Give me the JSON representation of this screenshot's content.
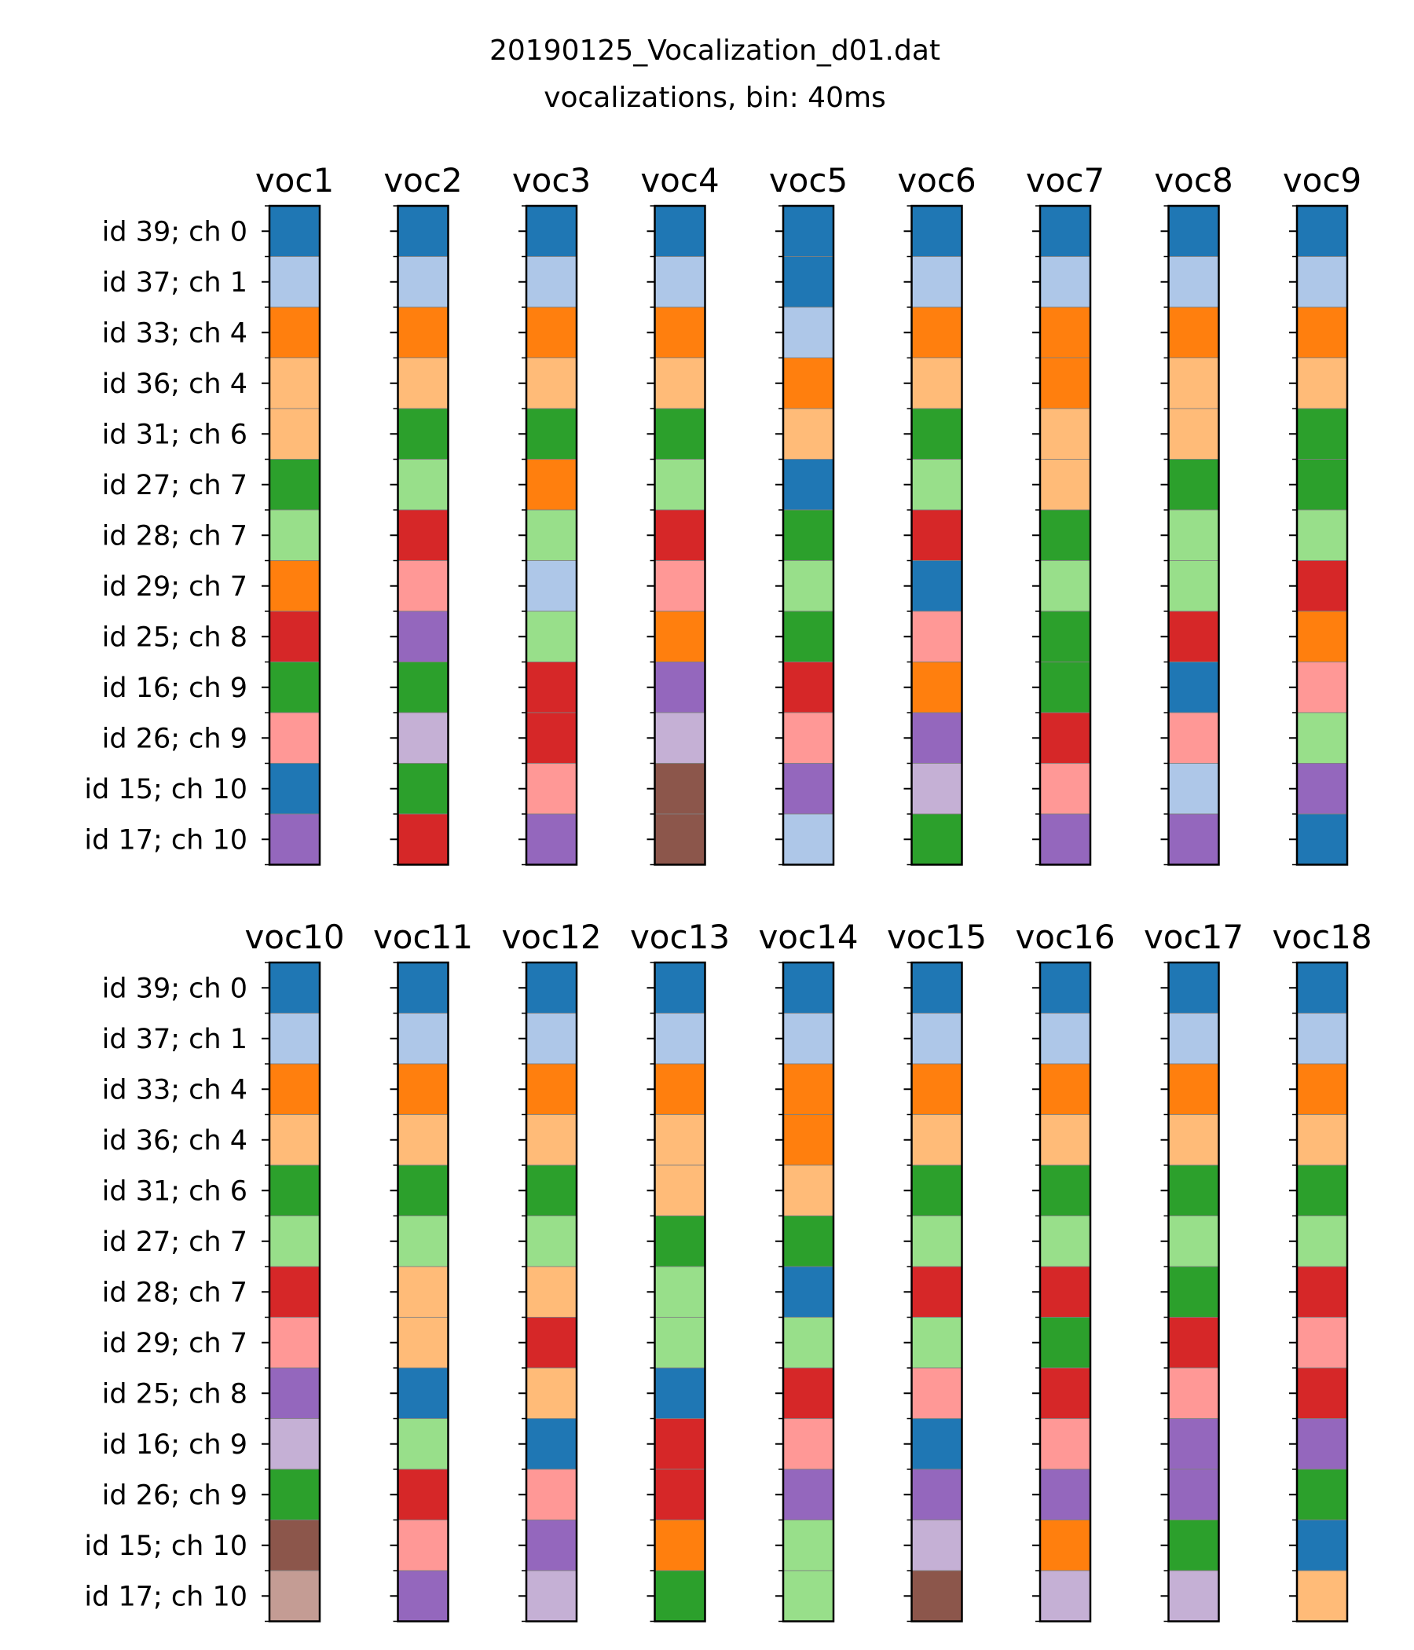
{
  "chart_data": {
    "type": "heatmap",
    "title": "20190125_Vocalization_d01.dat",
    "subtitle": "vocalizations, bin: 40ms",
    "row_labels": [
      "id 39; ch 0",
      "id 37; ch 1",
      "id 33; ch 4",
      "id 36; ch 4",
      "id 31; ch 6",
      "id 27; ch 7",
      "id 28; ch 7",
      "id 29; ch 7",
      "id 25; ch 8",
      "id 16; ch 9",
      "id 26; ch 9",
      "id 15; ch 10",
      "id 17; ch 10"
    ],
    "colormap": [
      "#1f77b4",
      "#aec7e8",
      "#ff7f0e",
      "#ffbb78",
      "#2ca02c",
      "#98df8a",
      "#d62728",
      "#ff9896",
      "#9467bd",
      "#c5b0d5",
      "#8c564b",
      "#c49c94"
    ],
    "panels": [
      {
        "columns": [
          "voc1",
          "voc2",
          "voc3",
          "voc4",
          "voc5",
          "voc6",
          "voc7",
          "voc8",
          "voc9"
        ],
        "values": [
          [
            0,
            1,
            2,
            3,
            3,
            4,
            5,
            2,
            6,
            4,
            7,
            0,
            8
          ],
          [
            0,
            1,
            2,
            3,
            4,
            5,
            6,
            7,
            8,
            4,
            9,
            4,
            6
          ],
          [
            0,
            1,
            2,
            3,
            4,
            2,
            5,
            1,
            5,
            6,
            6,
            7,
            8
          ],
          [
            0,
            1,
            2,
            3,
            4,
            5,
            6,
            7,
            2,
            8,
            9,
            10,
            10
          ],
          [
            0,
            0,
            1,
            2,
            3,
            0,
            4,
            5,
            4,
            6,
            7,
            8,
            1
          ],
          [
            0,
            1,
            2,
            3,
            4,
            5,
            6,
            0,
            7,
            2,
            8,
            9,
            4
          ],
          [
            0,
            1,
            2,
            2,
            3,
            3,
            4,
            5,
            4,
            4,
            6,
            7,
            8
          ],
          [
            0,
            1,
            2,
            3,
            3,
            4,
            5,
            5,
            6,
            0,
            7,
            1,
            8
          ],
          [
            0,
            1,
            2,
            3,
            4,
            4,
            5,
            6,
            2,
            7,
            5,
            8,
            0
          ]
        ]
      },
      {
        "columns": [
          "voc10",
          "voc11",
          "voc12",
          "voc13",
          "voc14",
          "voc15",
          "voc16",
          "voc17",
          "voc18"
        ],
        "values": [
          [
            0,
            1,
            2,
            3,
            4,
            5,
            6,
            7,
            8,
            9,
            4,
            10,
            11
          ],
          [
            0,
            1,
            2,
            3,
            4,
            5,
            3,
            3,
            0,
            5,
            6,
            7,
            8
          ],
          [
            0,
            1,
            2,
            3,
            4,
            5,
            3,
            6,
            3,
            0,
            7,
            8,
            9
          ],
          [
            0,
            1,
            2,
            3,
            3,
            4,
            5,
            5,
            0,
            6,
            6,
            2,
            4
          ],
          [
            0,
            1,
            2,
            2,
            3,
            4,
            0,
            5,
            6,
            7,
            8,
            5,
            5
          ],
          [
            0,
            1,
            2,
            3,
            4,
            5,
            6,
            5,
            7,
            0,
            8,
            9,
            10
          ],
          [
            0,
            1,
            2,
            3,
            4,
            5,
            6,
            4,
            6,
            7,
            8,
            2,
            9
          ],
          [
            0,
            1,
            2,
            3,
            4,
            5,
            4,
            6,
            7,
            8,
            8,
            4,
            9
          ],
          [
            0,
            1,
            2,
            3,
            4,
            5,
            6,
            7,
            6,
            8,
            4,
            0,
            3
          ]
        ]
      }
    ]
  }
}
